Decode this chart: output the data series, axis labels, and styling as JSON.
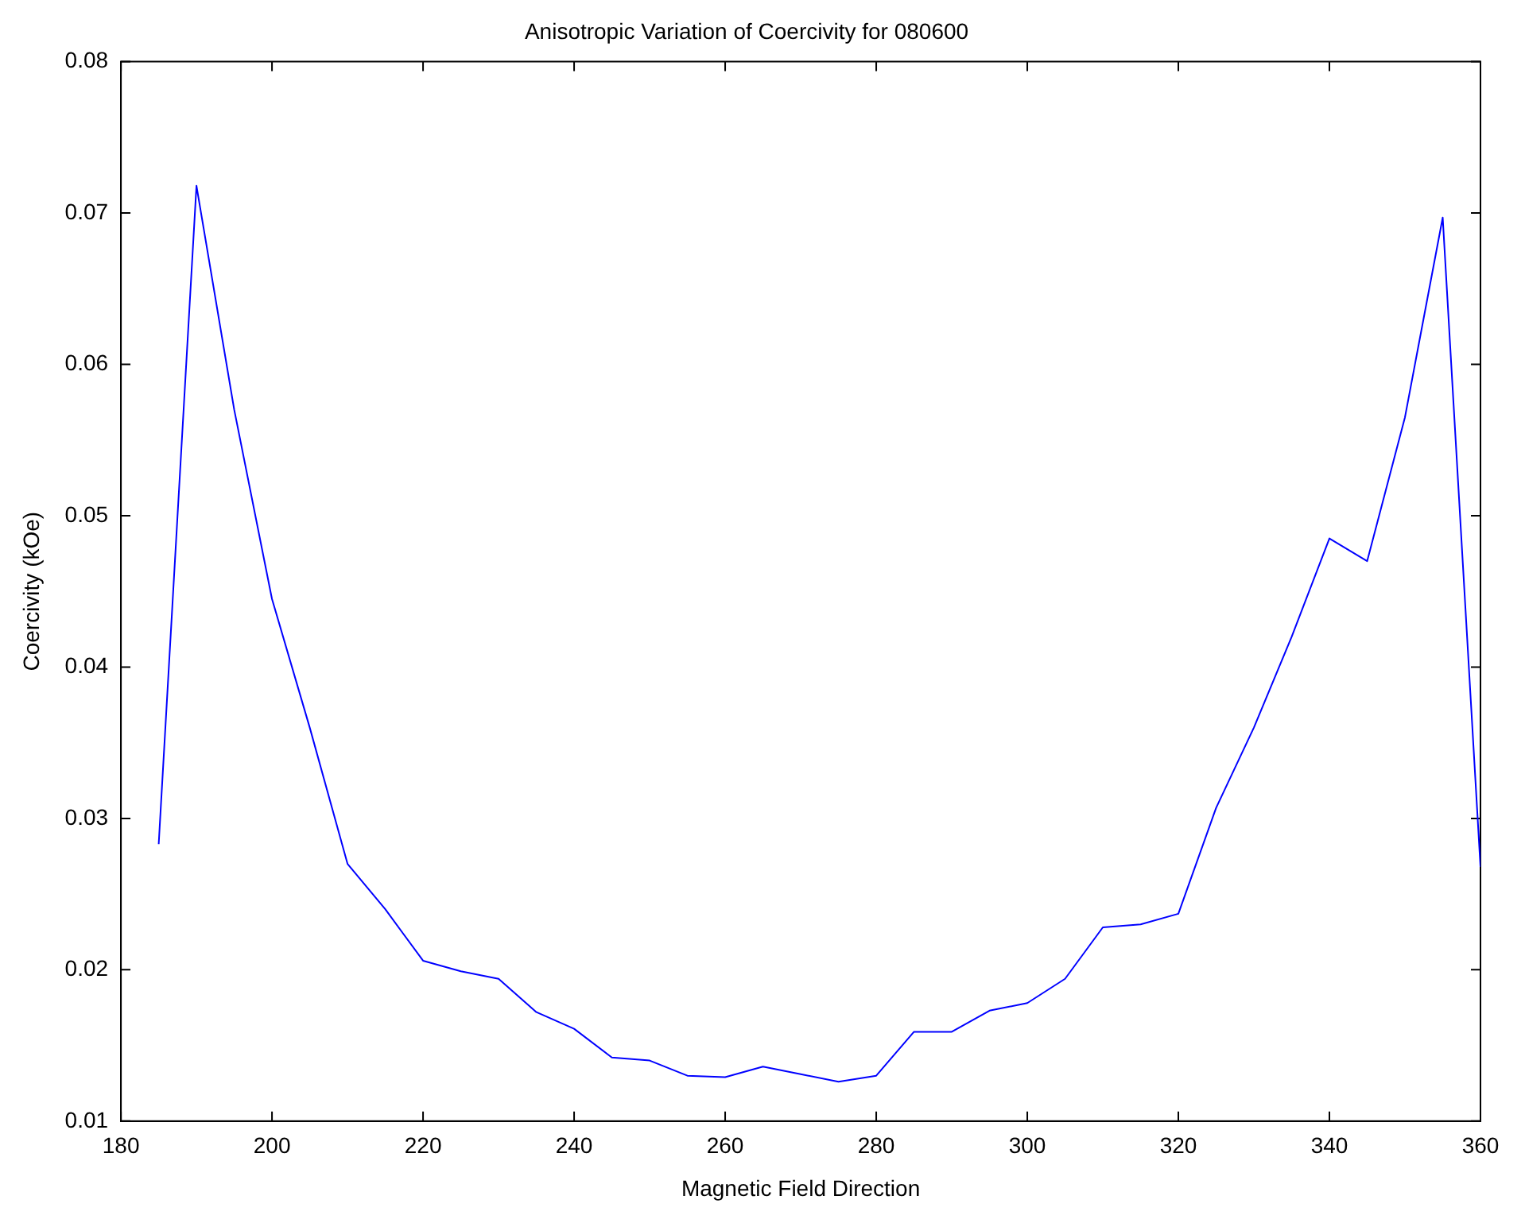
{
  "chart_data": {
    "type": "line",
    "title": "Anisotropic Variation of Coercivity for 080600",
    "xlabel": "Magnetic Field Direction",
    "ylabel": "Coercivity (kOe)",
    "x": [
      185,
      190,
      195,
      200,
      205,
      210,
      215,
      220,
      225,
      230,
      235,
      240,
      245,
      250,
      255,
      260,
      265,
      270,
      275,
      280,
      285,
      290,
      295,
      300,
      305,
      310,
      315,
      320,
      325,
      330,
      335,
      340,
      345,
      350,
      355,
      360
    ],
    "series": [
      {
        "color": "#0000ff",
        "values": [
          0.0283,
          0.0718,
          0.057,
          0.0445,
          0.036,
          0.027,
          0.024,
          0.0206,
          0.0199,
          0.0194,
          0.0172,
          0.0161,
          0.0142,
          0.014,
          0.013,
          0.0129,
          0.0136,
          0.0131,
          0.0126,
          0.013,
          0.0159,
          0.0159,
          0.0173,
          0.0178,
          0.0194,
          0.0228,
          0.023,
          0.0237,
          0.0307,
          0.036,
          0.042,
          0.0485,
          0.047,
          0.0565,
          0.0697,
          0.0268
        ]
      }
    ],
    "xlim": [
      180,
      360
    ],
    "xticks": [
      180,
      200,
      220,
      240,
      260,
      280,
      300,
      320,
      340,
      360
    ],
    "ylim": [
      0.01,
      0.08
    ],
    "yticks": [
      0.01,
      0.02,
      0.03,
      0.04,
      0.05,
      0.06,
      0.07,
      0.08
    ],
    "grid": false,
    "legend": false,
    "marker": "none",
    "line_style": "solid"
  }
}
